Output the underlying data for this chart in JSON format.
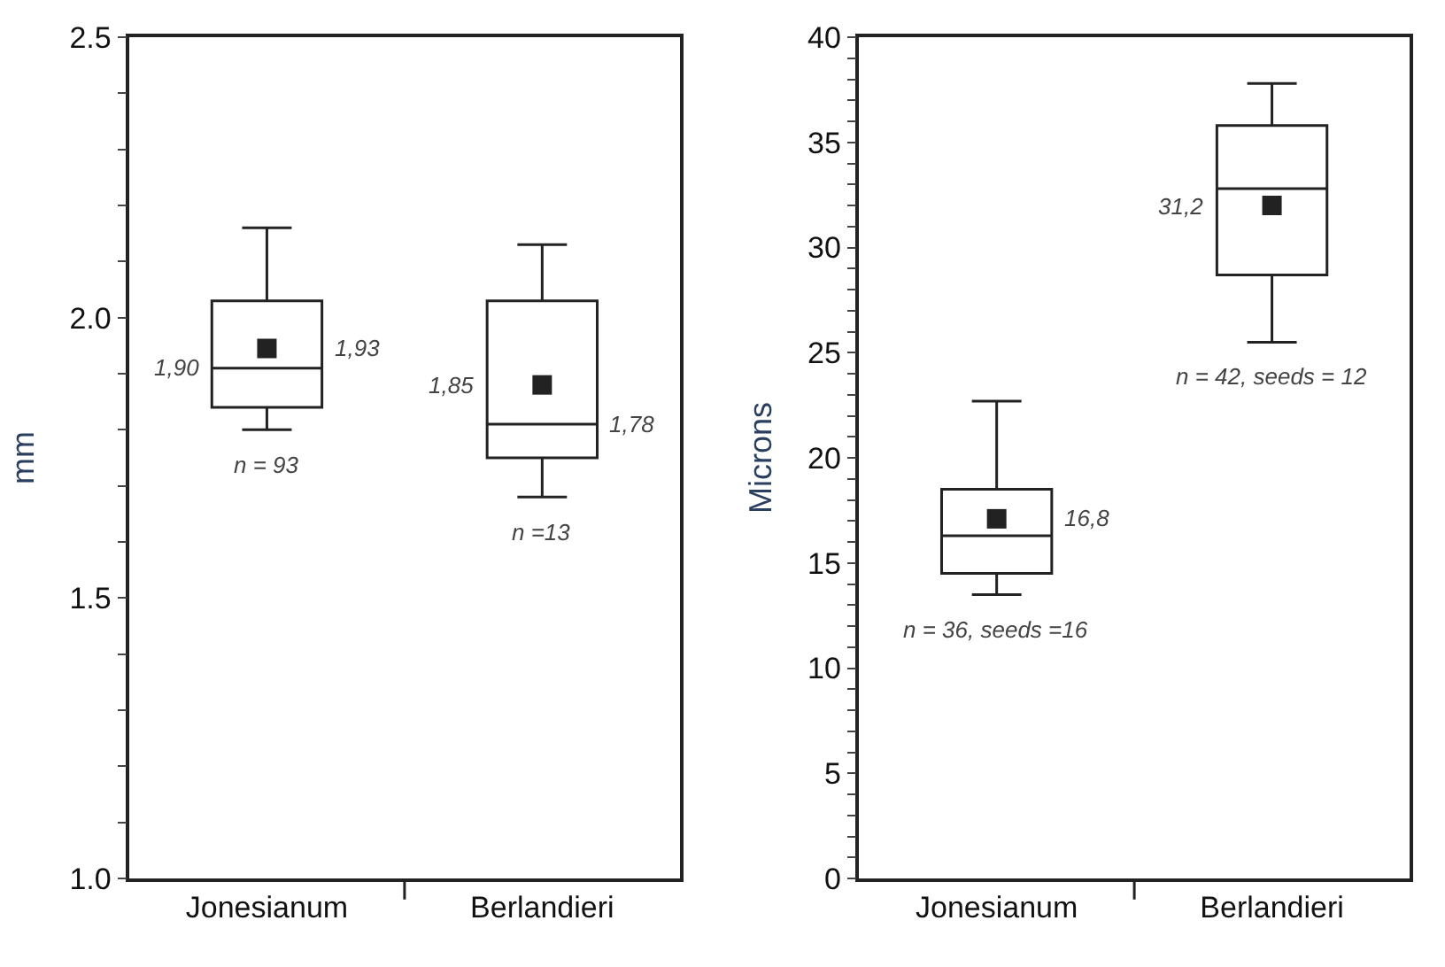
{
  "chart_data": [
    {
      "type": "box",
      "ylabel": "mm",
      "categories": [
        "Jonesianum",
        "Berlandieri"
      ],
      "boxes": [
        {
          "low": 1.8,
          "q1": 1.84,
          "median": 1.91,
          "q3": 2.03,
          "high": 2.16,
          "mean": 1.945
        },
        {
          "low": 1.68,
          "q1": 1.75,
          "median": 1.81,
          "q3": 2.03,
          "high": 2.13,
          "mean": 1.88
        }
      ],
      "ylim": [
        1.0,
        2.5
      ],
      "yticks": [
        {
          "value": 1.0,
          "label": "1.0"
        },
        {
          "value": 1.1,
          "label": null
        },
        {
          "value": 1.2,
          "label": null
        },
        {
          "value": 1.3,
          "label": null
        },
        {
          "value": 1.4,
          "label": null
        },
        1.5,
        {
          "value": 1.6,
          "label": null
        },
        {
          "value": 1.7,
          "label": null
        },
        {
          "value": 1.8,
          "label": null
        },
        {
          "value": 1.9,
          "label": null
        },
        {
          "value": 2.0,
          "label": "2.0"
        },
        {
          "value": 2.1,
          "label": null
        },
        {
          "value": 2.2,
          "label": null
        },
        {
          "value": 2.3,
          "label": null
        },
        {
          "value": 2.4,
          "label": null
        },
        2.5
      ],
      "marker": "square",
      "annotations": [
        "1,90",
        "1,93",
        "n = 93",
        "1,85",
        "1,78",
        "n =13"
      ]
    },
    {
      "type": "box",
      "ylabel": "Microns",
      "categories": [
        "Jonesianum",
        "Berlandieri"
      ],
      "boxes": [
        {
          "low": 13.5,
          "q1": 14.5,
          "median": 16.3,
          "q3": 18.5,
          "high": 22.7,
          "mean": 17.1
        },
        {
          "low": 25.5,
          "q1": 28.7,
          "median": 32.8,
          "q3": 35.8,
          "high": 37.8,
          "mean": 32.0
        }
      ],
      "ylim": [
        0,
        40
      ],
      "yticks": [
        0,
        {
          "value": 1,
          "label": null
        },
        {
          "value": 2,
          "label": null
        },
        {
          "value": 3,
          "label": null
        },
        {
          "value": 4,
          "label": null
        },
        5,
        {
          "value": 6,
          "label": null
        },
        {
          "value": 7,
          "label": null
        },
        {
          "value": 8,
          "label": null
        },
        {
          "value": 9,
          "label": null
        },
        10,
        {
          "value": 11,
          "label": null
        },
        {
          "value": 12,
          "label": null
        },
        {
          "value": 13,
          "label": null
        },
        {
          "value": 14,
          "label": null
        },
        15,
        {
          "value": 16,
          "label": null
        },
        {
          "value": 17,
          "label": null
        },
        {
          "value": 18,
          "label": null
        },
        {
          "value": 19,
          "label": null
        },
        20,
        {
          "value": 21,
          "label": null
        },
        {
          "value": 22,
          "label": null
        },
        {
          "value": 23,
          "label": null
        },
        {
          "value": 24,
          "label": null
        },
        25,
        {
          "value": 26,
          "label": null
        },
        {
          "value": 27,
          "label": null
        },
        {
          "value": 28,
          "label": null
        },
        {
          "value": 29,
          "label": null
        },
        30,
        {
          "value": 31,
          "label": null
        },
        {
          "value": 32,
          "label": null
        },
        {
          "value": 33,
          "label": null
        },
        {
          "value": 34,
          "label": null
        },
        35,
        {
          "value": 36,
          "label": null
        },
        {
          "value": 37,
          "label": null
        },
        {
          "value": 38,
          "label": null
        },
        {
          "value": 39,
          "label": null
        },
        40
      ],
      "marker": "square",
      "annotations": [
        "16,8",
        "n = 36, seeds =16",
        "31,2",
        "n = 42, seeds = 12"
      ]
    }
  ]
}
